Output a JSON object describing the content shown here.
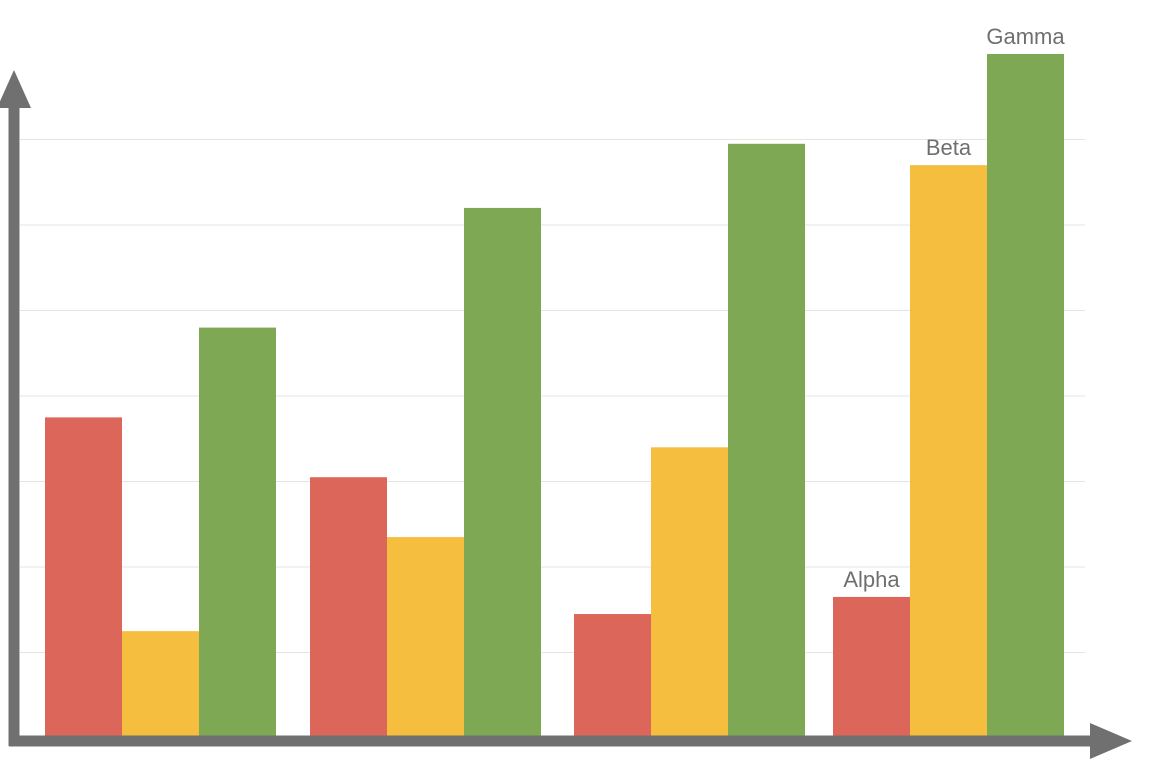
{
  "chart_data": {
    "type": "bar",
    "categories": [
      "",
      "",
      "",
      ""
    ],
    "series": [
      {
        "name": "Alpha",
        "color": "#dd665a",
        "values": [
          3.75,
          3.05,
          1.45,
          1.65
        ]
      },
      {
        "name": "Beta",
        "color": "#f5be3f",
        "values": [
          1.25,
          2.35,
          3.4,
          6.7
        ]
      },
      {
        "name": "Gamma",
        "color": "#7ea853",
        "values": [
          4.8,
          6.2,
          6.95,
          8.0
        ]
      }
    ],
    "ylim": [
      0,
      8
    ],
    "grid": true,
    "legend": "series names shown as labels above last category bars",
    "title": "",
    "xlabel": "",
    "ylabel": ""
  }
}
